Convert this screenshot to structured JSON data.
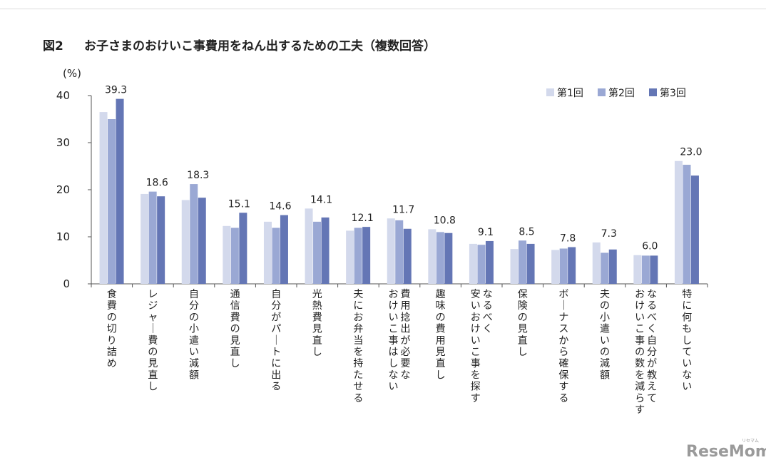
{
  "header": {
    "figure_label": "図2",
    "title": "お子さまのおけいこ事費用をねん出するための工夫（複数回答）"
  },
  "watermark": {
    "brand": "ReseMom",
    "brand_ruby": "リセマム"
  },
  "colors": {
    "series1": "#d3d9ec",
    "series2": "#9aa8d4",
    "series3": "#6476b5",
    "axis": "#555555"
  },
  "chart_data": {
    "type": "bar",
    "title": "お子さまのおけいこ事費用をねん出するための工夫（複数回答）",
    "ylabel": "(%)",
    "xlabel": "",
    "ylim": [
      0,
      40
    ],
    "yticks": [
      0,
      10,
      20,
      30,
      40
    ],
    "ytick_labels": [
      "0",
      "10",
      "20",
      "30",
      "40"
    ],
    "legend_position": "top-right",
    "categories": [
      [
        "食費の切り詰め"
      ],
      [
        "レジャー費の見直し"
      ],
      [
        "自分の小遣い減額"
      ],
      [
        "通信費の見直し"
      ],
      [
        "自分がパートに出る"
      ],
      [
        "光熱費見直し"
      ],
      [
        "夫にお弁当を持たせる"
      ],
      [
        "費用捻出が必要な",
        "おけいこ事はしない"
      ],
      [
        "趣味の費用見直し"
      ],
      [
        "なるべく",
        "安いおけいこ事を探す"
      ],
      [
        "保険の見直し"
      ],
      [
        "ボーナスから確保する"
      ],
      [
        "夫の小遣いの減額"
      ],
      [
        "なるべく自分が教えて",
        "おけいこ事の数を減らす"
      ],
      [
        "特に何もしていない"
      ]
    ],
    "series": [
      {
        "name": "第1回",
        "values": [
          36.5,
          19.1,
          17.8,
          12.3,
          13.2,
          16.0,
          11.3,
          13.9,
          11.6,
          8.5,
          7.4,
          7.2,
          8.8,
          6.1,
          26.1
        ]
      },
      {
        "name": "第2回",
        "values": [
          35.0,
          19.6,
          21.2,
          11.9,
          11.9,
          13.2,
          11.9,
          13.5,
          11.0,
          8.3,
          9.2,
          7.5,
          6.6,
          6.0,
          25.3
        ]
      },
      {
        "name": "第3回",
        "values": [
          39.3,
          18.6,
          18.3,
          15.1,
          14.6,
          14.1,
          12.1,
          11.7,
          10.8,
          9.1,
          8.5,
          7.8,
          7.3,
          6.0,
          23.0
        ]
      }
    ],
    "value_labels": [
      "39.3",
      "18.6",
      "18.3",
      "15.1",
      "14.6",
      "14.1",
      "12.1",
      "11.7",
      "10.8",
      "9.1",
      "8.5",
      "7.8",
      "7.3",
      "6.0",
      "23.0"
    ]
  }
}
